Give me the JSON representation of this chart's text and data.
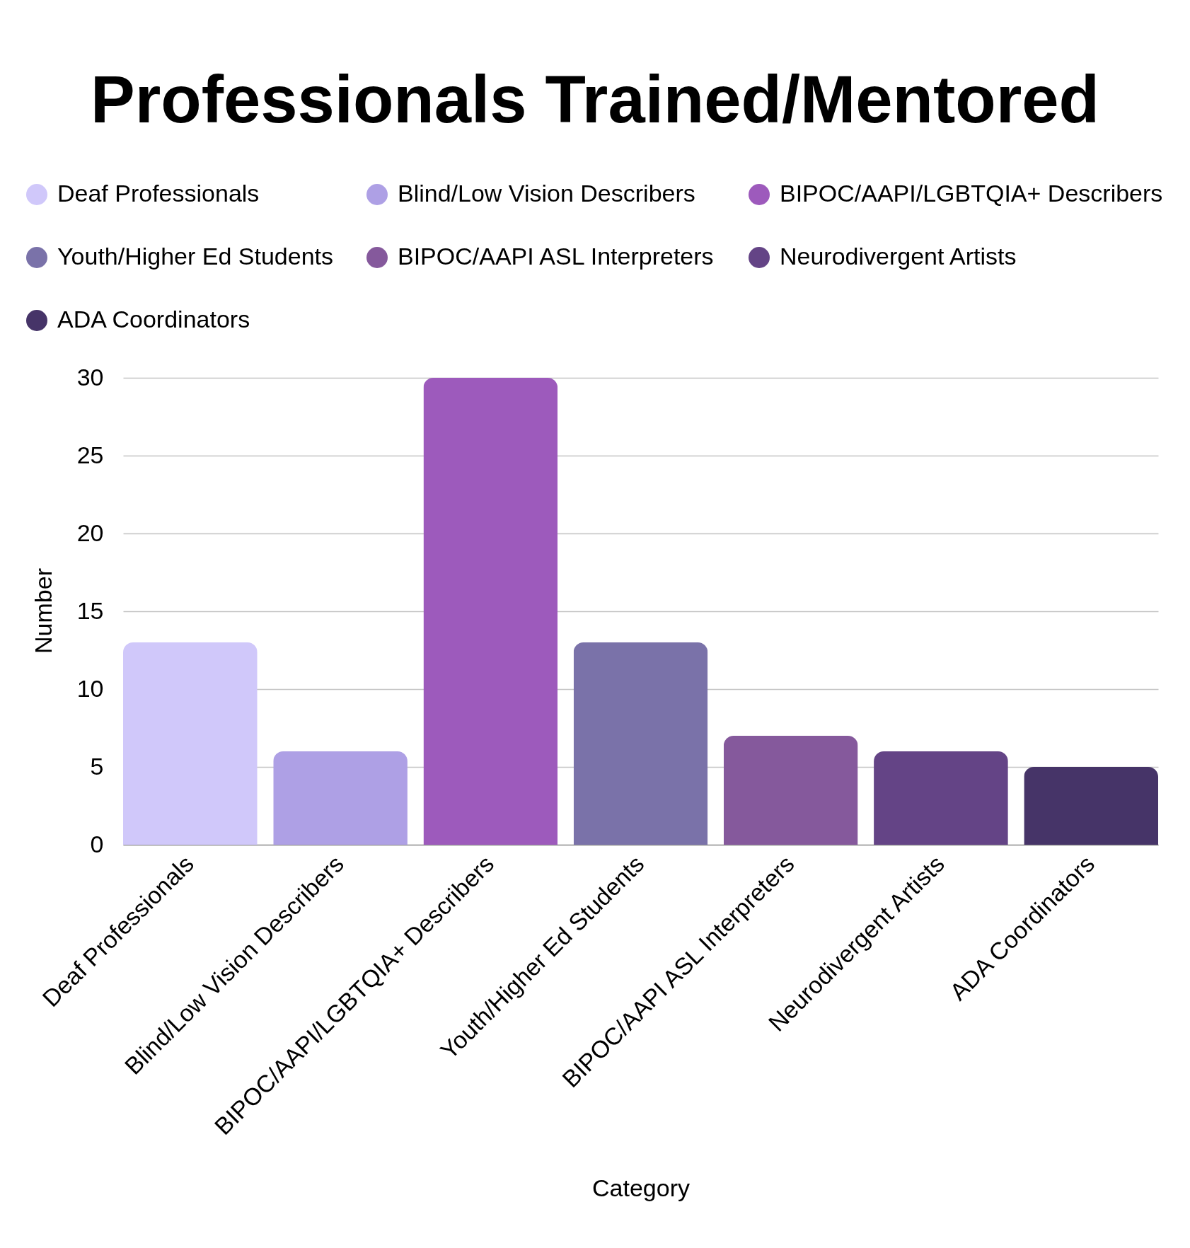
{
  "chart_data": {
    "type": "bar",
    "title": "Professionals Trained/Mentored",
    "xlabel": "Category",
    "ylabel": "Number",
    "categories": [
      "Deaf Professionals",
      "Blind/Low Vision Describers",
      "BIPOC/AAPI/LGBTQIA+ Describers",
      "Youth/Higher Ed Students",
      "BIPOC/AAPI ASL Interpreters",
      "Neurodivergent Artists",
      "ADA Coordinators"
    ],
    "series": [
      {
        "name": "Deaf Professionals",
        "color": "#d0c8fa",
        "values": [
          13,
          null,
          null,
          null,
          null,
          null,
          null
        ]
      },
      {
        "name": "Blind/Low Vision Describers",
        "color": "#aea0e5",
        "values": [
          null,
          6,
          null,
          null,
          null,
          null,
          null
        ]
      },
      {
        "name": "BIPOC/AAPI/LGBTQIA+ Describers",
        "color": "#9d5abc",
        "values": [
          null,
          null,
          30,
          null,
          null,
          null,
          null
        ]
      },
      {
        "name": "Youth/Higher Ed Students",
        "color": "#7a72a9",
        "values": [
          null,
          null,
          null,
          13,
          null,
          null,
          null
        ]
      },
      {
        "name": "BIPOC/AAPI ASL Interpreters",
        "color": "#85599c",
        "values": [
          null,
          null,
          null,
          null,
          7,
          null,
          null
        ]
      },
      {
        "name": "Neurodivergent Artists",
        "color": "#644486",
        "values": [
          null,
          null,
          null,
          null,
          null,
          6,
          null
        ]
      },
      {
        "name": "ADA Coordinators",
        "color": "#463468",
        "values": [
          null,
          null,
          null,
          null,
          null,
          null,
          5
        ]
      }
    ],
    "ylim": [
      0,
      30
    ],
    "yticks": [
      0,
      5,
      10,
      15,
      20,
      25,
      30
    ],
    "grid": "y",
    "legend": "top"
  }
}
